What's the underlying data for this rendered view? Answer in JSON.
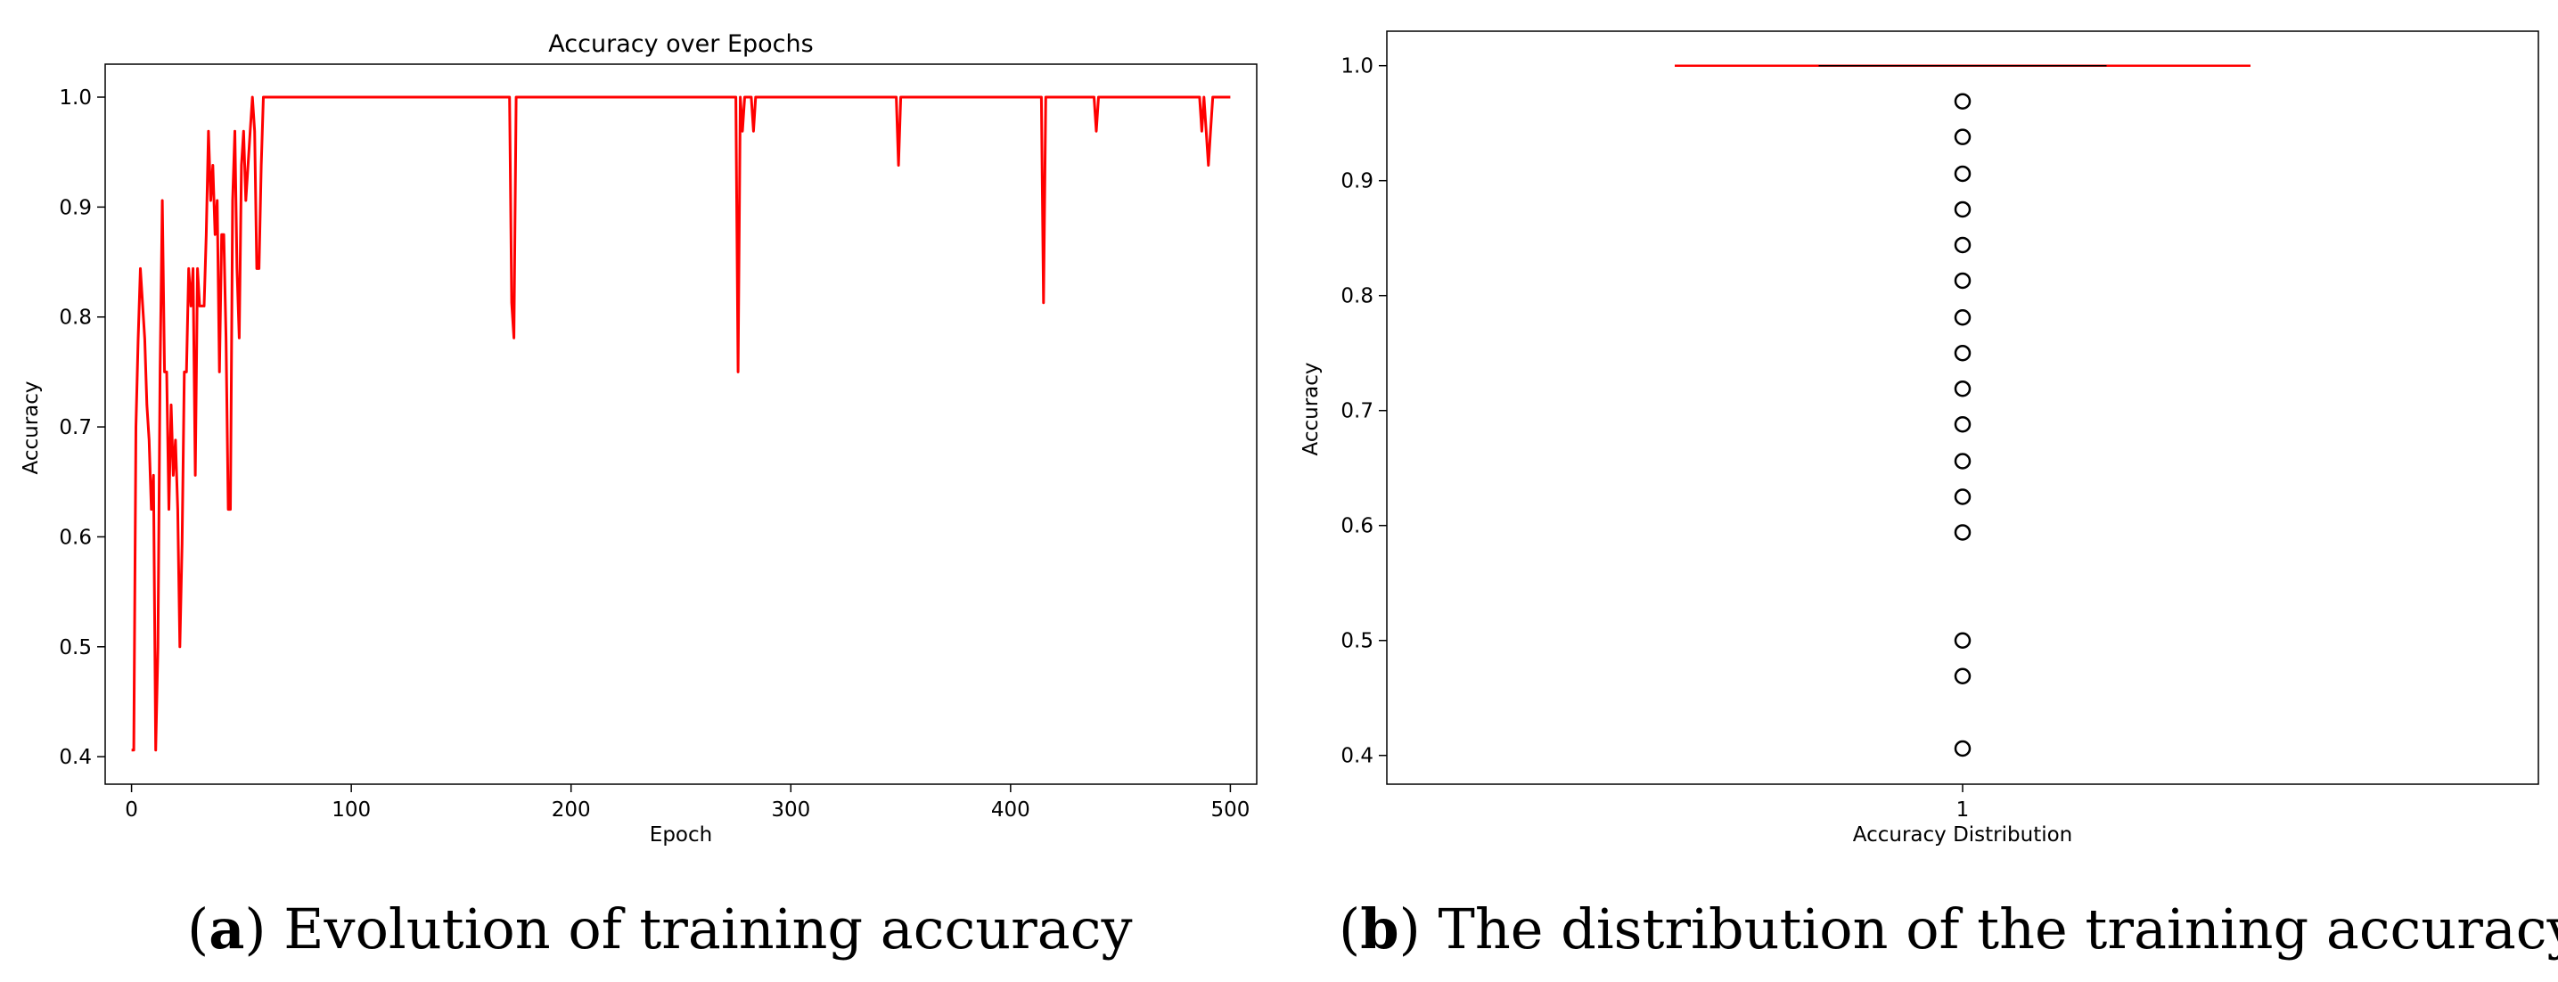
{
  "captions": {
    "a_letter": "a",
    "a_text": "Evolution of training accuracy",
    "b_letter": "b",
    "b_text": "The distribution of the training accuracy"
  },
  "colors": {
    "series": "#ff0000",
    "axis": "#000000",
    "outlier": "#000000",
    "background": "#ffffff"
  },
  "chart_data": [
    {
      "type": "line",
      "title": "Accuracy over Epochs",
      "xlabel": "Epoch",
      "ylabel": "Accuracy",
      "xlim": [
        -12,
        512
      ],
      "ylim": [
        0.375,
        1.03
      ],
      "xticks": [
        0,
        100,
        200,
        300,
        400,
        500
      ],
      "yticks": [
        0.4,
        0.5,
        0.6,
        0.7,
        0.8,
        0.9,
        1.0
      ],
      "ytick_labels": [
        "0.4",
        "0.5",
        "0.6",
        "0.7",
        "0.8",
        "0.9",
        "1.0"
      ],
      "grid": false,
      "series": [
        {
          "color": "#ff0000",
          "points": [
            [
              0,
              0.406
            ],
            [
              1,
              0.406
            ],
            [
              2,
              0.7
            ],
            [
              3,
              0.78
            ],
            [
              4,
              0.844
            ],
            [
              6,
              0.78
            ],
            [
              7,
              0.72
            ],
            [
              8,
              0.688
            ],
            [
              9,
              0.625
            ],
            [
              10,
              0.656
            ],
            [
              11,
              0.406
            ],
            [
              12,
              0.5
            ],
            [
              13,
              0.75
            ],
            [
              14,
              0.906
            ],
            [
              15,
              0.75
            ],
            [
              16,
              0.75
            ],
            [
              17,
              0.625
            ],
            [
              18,
              0.72
            ],
            [
              19,
              0.656
            ],
            [
              20,
              0.688
            ],
            [
              21,
              0.625
            ],
            [
              22,
              0.5
            ],
            [
              23,
              0.594
            ],
            [
              24,
              0.75
            ],
            [
              25,
              0.75
            ],
            [
              26,
              0.844
            ],
            [
              27,
              0.81
            ],
            [
              28,
              0.844
            ],
            [
              29,
              0.656
            ],
            [
              30,
              0.844
            ],
            [
              31,
              0.81
            ],
            [
              32,
              0.81
            ],
            [
              33,
              0.81
            ],
            [
              34,
              0.875
            ],
            [
              35,
              0.969
            ],
            [
              36,
              0.906
            ],
            [
              37,
              0.938
            ],
            [
              38,
              0.875
            ],
            [
              39,
              0.906
            ],
            [
              40,
              0.75
            ],
            [
              41,
              0.875
            ],
            [
              42,
              0.875
            ],
            [
              43,
              0.781
            ],
            [
              44,
              0.625
            ],
            [
              45,
              0.625
            ],
            [
              46,
              0.906
            ],
            [
              47,
              0.969
            ],
            [
              48,
              0.844
            ],
            [
              49,
              0.781
            ],
            [
              50,
              0.938
            ],
            [
              51,
              0.969
            ],
            [
              52,
              0.906
            ],
            [
              53,
              0.938
            ],
            [
              54,
              0.969
            ],
            [
              55,
              1.0
            ],
            [
              56,
              0.969
            ],
            [
              57,
              0.844
            ],
            [
              58,
              0.844
            ],
            [
              59,
              0.938
            ],
            [
              60,
              1.0
            ],
            [
              172,
              1.0
            ],
            [
              173,
              0.813
            ],
            [
              174,
              0.781
            ],
            [
              175,
              1.0
            ],
            [
              275,
              1.0
            ],
            [
              276,
              0.75
            ],
            [
              277,
              1.0
            ],
            [
              278,
              0.969
            ],
            [
              279,
              1.0
            ],
            [
              282,
              1.0
            ],
            [
              283,
              0.969
            ],
            [
              284,
              1.0
            ],
            [
              348,
              1.0
            ],
            [
              349,
              0.938
            ],
            [
              350,
              1.0
            ],
            [
              414,
              1.0
            ],
            [
              415,
              0.813
            ],
            [
              416,
              1.0
            ],
            [
              438,
              1.0
            ],
            [
              439,
              0.969
            ],
            [
              440,
              1.0
            ],
            [
              486,
              1.0
            ],
            [
              487,
              0.969
            ],
            [
              488,
              1.0
            ],
            [
              489,
              0.969
            ],
            [
              490,
              0.938
            ],
            [
              491,
              0.969
            ],
            [
              492,
              1.0
            ],
            [
              500,
              1.0
            ]
          ]
        }
      ]
    },
    {
      "type": "box",
      "title": "",
      "xlabel": "Accuracy Distribution",
      "ylabel": "Accuracy",
      "categories": [
        "1"
      ],
      "xlim": [
        0.5,
        1.5
      ],
      "ylim": [
        0.375,
        1.03
      ],
      "yticks": [
        0.4,
        0.5,
        0.6,
        0.7,
        0.8,
        0.9,
        1.0
      ],
      "ytick_labels": [
        "0.4",
        "0.5",
        "0.6",
        "0.7",
        "0.8",
        "0.9",
        "1.0"
      ],
      "grid": false,
      "box": {
        "position": 1,
        "q1": 1.0,
        "median": 1.0,
        "q3": 1.0,
        "whisker_low": 1.0,
        "whisker_high": 1.0,
        "width": 0.5,
        "color": "#ff0000",
        "outliers": [
          0.969,
          0.938,
          0.906,
          0.875,
          0.844,
          0.813,
          0.781,
          0.75,
          0.719,
          0.688,
          0.656,
          0.625,
          0.594,
          0.5,
          0.469,
          0.406
        ]
      }
    }
  ]
}
